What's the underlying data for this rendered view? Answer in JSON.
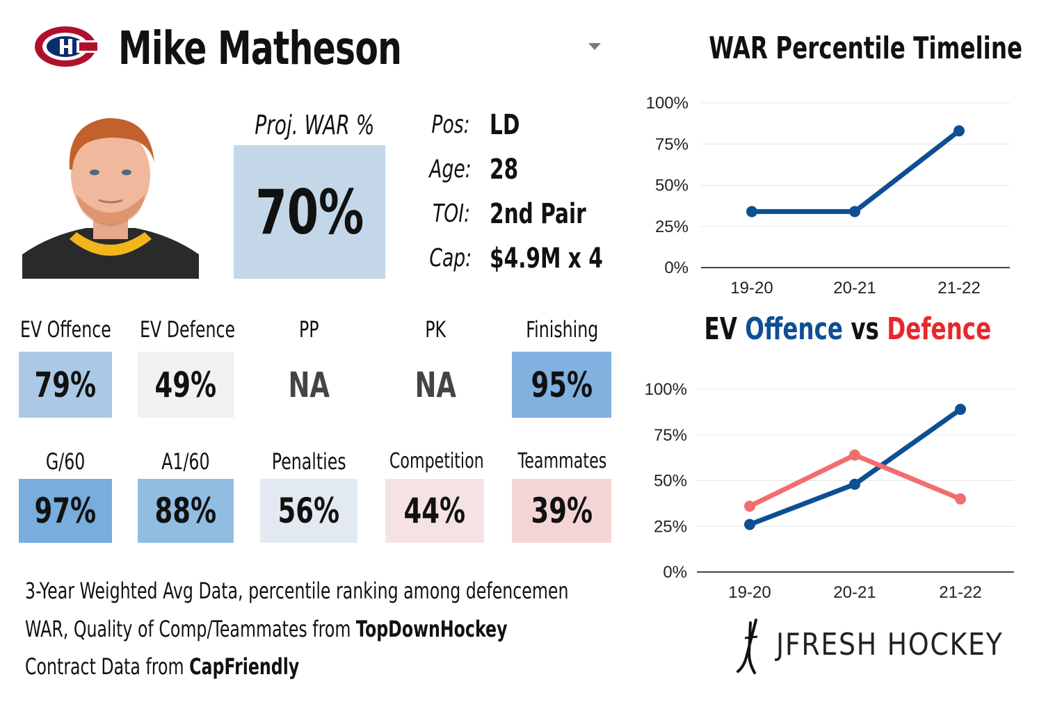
{
  "header": {
    "player_name": "Mike Matheson",
    "team_logo_icon": "canadiens-logo-icon"
  },
  "projected_war": {
    "label": "Proj. WAR %",
    "value": "70%",
    "color": "#c3d7e9"
  },
  "info": [
    {
      "label": "Pos:",
      "value": "LD"
    },
    {
      "label": "Age:",
      "value": "28"
    },
    {
      "label": "TOI:",
      "value": "2nd Pair"
    },
    {
      "label": "Cap:",
      "value": "$4.9M x 4"
    }
  ],
  "tiles_row1": [
    {
      "label": "EV Offence",
      "value": "79%",
      "color": "#abc9e6"
    },
    {
      "label": "EV Defence",
      "value": "49%",
      "color": "#f2f0f0"
    },
    {
      "label": "PP",
      "value": "NA",
      "color": "#ffffff"
    },
    {
      "label": "PK",
      "value": "NA",
      "color": "#ffffff"
    },
    {
      "label": "Finishing",
      "value": "95%",
      "color": "#80b1df"
    }
  ],
  "tiles_row2": [
    {
      "label": "G/60",
      "value": "97%",
      "color": "#78addd"
    },
    {
      "label": "A1/60",
      "value": "88%",
      "color": "#91bde3"
    },
    {
      "label": "Penalties",
      "value": "56%",
      "color": "#e3e9f1"
    },
    {
      "label": "Competition",
      "value": "44%",
      "color": "#f5e3e3"
    },
    {
      "label": "Teammates",
      "value": "39%",
      "color": "#f4d5d6"
    }
  ],
  "footer": {
    "line1": "3-Year Weighted Avg Data, percentile ranking among defencemen",
    "line2_text": "WAR, Quality of Comp/Teammates from ",
    "line2_bold": "TopDownHockey",
    "line3_text": "Contract Data from ",
    "line3_bold": "CapFriendly"
  },
  "brand": {
    "name": "JFRESH HOCKEY",
    "icon": "hockey-sticks-icon"
  },
  "chart_data": [
    {
      "type": "line",
      "title": "WAR Percentile Timeline",
      "x": [
        "19-20",
        "20-21",
        "21-22"
      ],
      "yticks": [
        "0%",
        "25%",
        "50%",
        "75%",
        "100%"
      ],
      "ylim": [
        0,
        100
      ],
      "grid": true,
      "series": [
        {
          "values": [
            34,
            34,
            83
          ],
          "color": "#0e4f94"
        }
      ]
    },
    {
      "type": "line",
      "title_parts": [
        "EV ",
        "Offence",
        " vs ",
        "Defence"
      ],
      "x": [
        "19-20",
        "20-21",
        "21-22"
      ],
      "yticks": [
        "0%",
        "25%",
        "50%",
        "75%",
        "100%"
      ],
      "ylim": [
        0,
        100
      ],
      "grid": true,
      "series": [
        {
          "name": "Offence",
          "values": [
            26,
            48,
            89
          ],
          "color": "#0e4f94"
        },
        {
          "name": "Defence",
          "values": [
            36,
            64,
            40
          ],
          "color": "#f26d6d"
        }
      ]
    }
  ]
}
